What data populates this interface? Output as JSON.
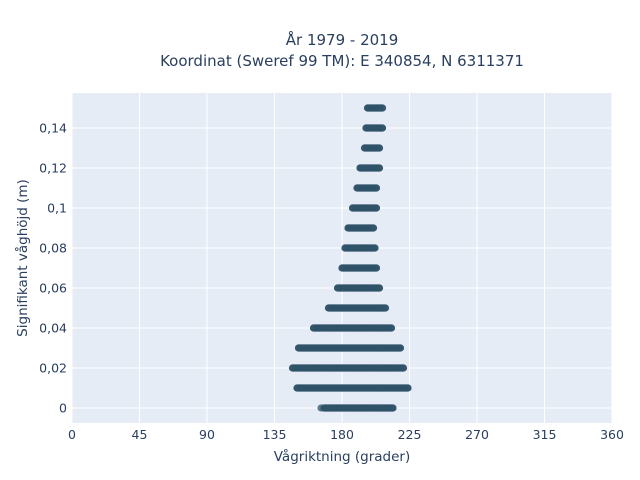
{
  "chart_data": {
    "type": "scatter",
    "title_line1": "År 1979 - 2019",
    "title_line2": "Koordinat (Sweref 99 TM): E 340854, N 6311371",
    "xlabel": "Vågriktning (grader)",
    "ylabel": "Signifikant våghöjd (m)",
    "xlim": [
      0,
      360
    ],
    "ylim": [
      -0.0075,
      0.1575
    ],
    "xticks": [
      0,
      45,
      90,
      135,
      180,
      225,
      270,
      315,
      360
    ],
    "xtick_labels": [
      "0",
      "45",
      "90",
      "135",
      "180",
      "225",
      "270",
      "315",
      "360"
    ],
    "yticks": [
      0,
      0.02,
      0.04,
      0.06,
      0.08,
      0.1,
      0.12,
      0.14
    ],
    "ytick_labels": [
      "0",
      "0,02",
      "0,04",
      "0,06",
      "0,08",
      "0,1",
      "0,12",
      "0,14"
    ],
    "grid": true,
    "colors": {
      "marker": "#2f5168",
      "plot_bg": "#e5ecf6",
      "grid": "#ffffff",
      "text": "#2a3f5f"
    },
    "series": [
      {
        "bands": [
          {
            "y": 0.0,
            "xmin": 168,
            "xmax": 214
          },
          {
            "y": 0.01,
            "xmin": 150,
            "xmax": 224
          },
          {
            "y": 0.02,
            "xmin": 147,
            "xmax": 221
          },
          {
            "y": 0.03,
            "xmin": 151,
            "xmax": 219
          },
          {
            "y": 0.04,
            "xmin": 161,
            "xmax": 213
          },
          {
            "y": 0.05,
            "xmin": 171,
            "xmax": 209
          },
          {
            "y": 0.06,
            "xmin": 177,
            "xmax": 205
          },
          {
            "y": 0.07,
            "xmin": 180,
            "xmax": 203
          },
          {
            "y": 0.08,
            "xmin": 182,
            "xmax": 202
          },
          {
            "y": 0.09,
            "xmin": 184,
            "xmax": 201
          },
          {
            "y": 0.1,
            "xmin": 187,
            "xmax": 203
          },
          {
            "y": 0.11,
            "xmin": 190,
            "xmax": 203
          },
          {
            "y": 0.12,
            "xmin": 192,
            "xmax": 205
          },
          {
            "y": 0.13,
            "xmin": 195,
            "xmax": 205
          },
          {
            "y": 0.14,
            "xmin": 196,
            "xmax": 207
          },
          {
            "y": 0.15,
            "xmin": 197,
            "xmax": 207
          }
        ],
        "outliers": [
          {
            "x": 166,
            "y": 0.0
          }
        ]
      }
    ]
  }
}
